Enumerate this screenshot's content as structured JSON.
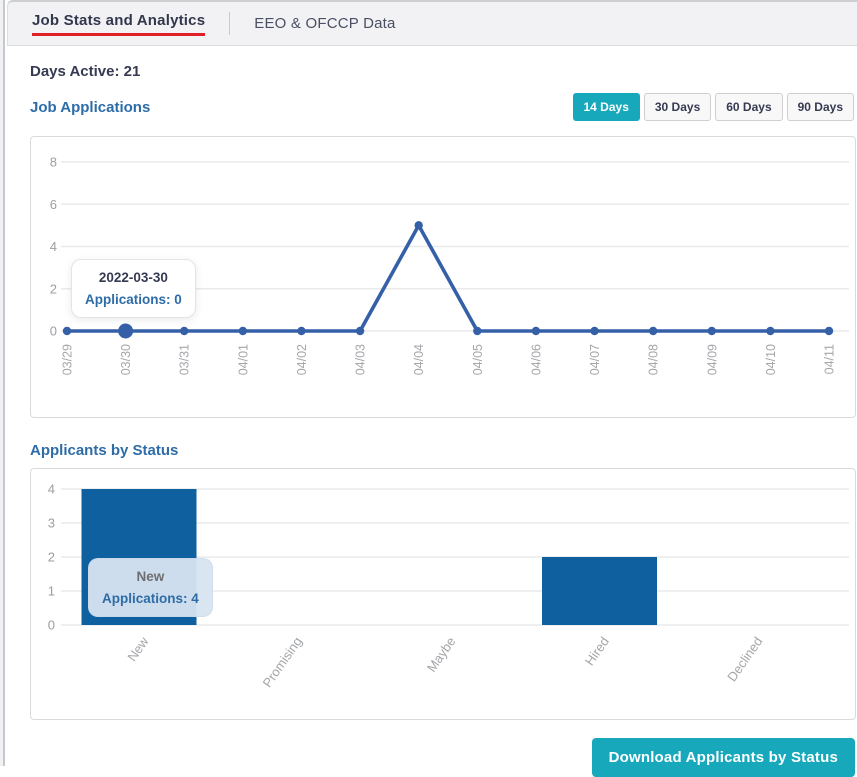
{
  "tabs": {
    "active": "Job Stats and Analytics",
    "inactive": "EEO & OFCCP Data"
  },
  "stats": {
    "days_active_label": "Days Active:",
    "days_active_value": "21"
  },
  "sections": {
    "applications_title": "Job Applications",
    "status_title": "Applicants by Status"
  },
  "filters": {
    "options": [
      "14 Days",
      "30 Days",
      "60 Days",
      "90 Days"
    ],
    "selected": "14 Days"
  },
  "colors": {
    "accent_teal": "#17a8bc",
    "tab_underline_red": "#e01e25",
    "heading_blue": "#2e6ca8",
    "line_blue": "#3560a8",
    "bar_blue": "#0f609f",
    "grid_gray": "#e9eaeb",
    "axis_label_gray": "#a4a6aa"
  },
  "chart_data": [
    {
      "type": "line",
      "title": "Job Applications",
      "x": [
        "03/29",
        "03/30",
        "03/31",
        "04/01",
        "04/02",
        "04/03",
        "04/04",
        "04/05",
        "04/06",
        "04/07",
        "04/08",
        "04/09",
        "04/10",
        "04/11"
      ],
      "values": [
        0,
        0,
        0,
        0,
        0,
        0,
        5,
        0,
        0,
        0,
        0,
        0,
        0,
        0
      ],
      "ylim": [
        0,
        8
      ],
      "yticks": [
        0,
        2,
        4,
        6,
        8
      ],
      "grid": true,
      "legend": "none",
      "highlighted_x": "03/30",
      "tooltip": {
        "title": "2022-03-30",
        "label": "Applications: 0"
      }
    },
    {
      "type": "bar",
      "title": "Applicants by Status",
      "categories": [
        "New",
        "Promising",
        "Maybe",
        "Hired",
        "Declined"
      ],
      "values": [
        4,
        0,
        0,
        2,
        0
      ],
      "ylim": [
        0,
        4
      ],
      "yticks": [
        0,
        1,
        2,
        3,
        4
      ],
      "grid": true,
      "legend": "none",
      "highlighted_category": "New",
      "tooltip": {
        "title": "New",
        "label": "Applications: 4"
      }
    }
  ],
  "tooltips": {
    "line": {
      "title": "2022-03-30",
      "label": "Applications: 0"
    },
    "bar": {
      "title": "New",
      "label": "Applications: 4"
    }
  },
  "actions": {
    "download_label": "Download Applicants by Status"
  }
}
